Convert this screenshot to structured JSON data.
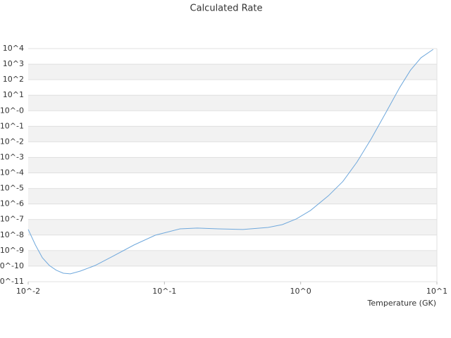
{
  "chart_data": {
    "type": "line",
    "title": "Calculated Rate",
    "x_label": "Temperature (GK)",
    "xlog": true,
    "ylog": true,
    "grid": true,
    "bands": true,
    "xlim": [
      0.01,
      10
    ],
    "xticks": [
      {
        "value": 0.01,
        "label": "10^-2"
      },
      {
        "value": 0.1,
        "label": "10^-1"
      },
      {
        "value": 1,
        "label": "10^0"
      },
      {
        "value": 10,
        "label": "10^1"
      }
    ],
    "ylim": [
      1e-11,
      10000
    ],
    "yticks": [
      {
        "value": 10000,
        "label": "10^4"
      },
      {
        "value": 1000,
        "label": "10^3"
      },
      {
        "value": 100,
        "label": "10^2"
      },
      {
        "value": 10,
        "label": "10^1"
      },
      {
        "value": 1,
        "label": "10^-0"
      },
      {
        "value": 0.1,
        "label": "10^-1"
      },
      {
        "value": 0.01,
        "label": "10^-2"
      },
      {
        "value": 0.001,
        "label": "10^-3"
      },
      {
        "value": 0.0001,
        "label": "10^-4"
      },
      {
        "value": 1e-05,
        "label": "10^-5"
      },
      {
        "value": 1e-06,
        "label": "10^-6"
      },
      {
        "value": 1e-07,
        "label": "10^-7"
      },
      {
        "value": 1e-08,
        "label": "10^-8"
      },
      {
        "value": 1e-09,
        "label": "10^-9"
      },
      {
        "value": 1e-10,
        "label": "10^-10"
      },
      {
        "value": 1e-11,
        "label": "10^-11"
      }
    ],
    "series": [
      {
        "color": "#6fa8dc",
        "x": [
          0.01,
          0.0113,
          0.0127,
          0.0143,
          0.0161,
          0.0181,
          0.0204,
          0.0241,
          0.031,
          0.0418,
          0.0598,
          0.0857,
          0.13,
          0.174,
          0.249,
          0.376,
          0.576,
          0.733,
          0.931,
          1.18,
          1.6,
          2.04,
          2.59,
          3.3,
          4.19,
          5.34,
          6.39,
          7.65,
          9.39
        ],
        "values": [
          2.3e-08,
          2.3e-09,
          3.5e-10,
          1.1e-10,
          5.4e-11,
          3.5e-11,
          3.2e-11,
          4.8e-11,
          1.1e-10,
          4.3e-10,
          2.3e-09,
          9.8e-09,
          2.5e-08,
          2.8e-08,
          2.5e-08,
          2.3e-08,
          3.1e-08,
          4.7e-08,
          1.1e-07,
          3.8e-07,
          3.4e-06,
          2.8e-05,
          0.0005,
          0.016,
          0.68,
          32,
          400,
          2600,
          8900
        ]
      }
    ]
  }
}
